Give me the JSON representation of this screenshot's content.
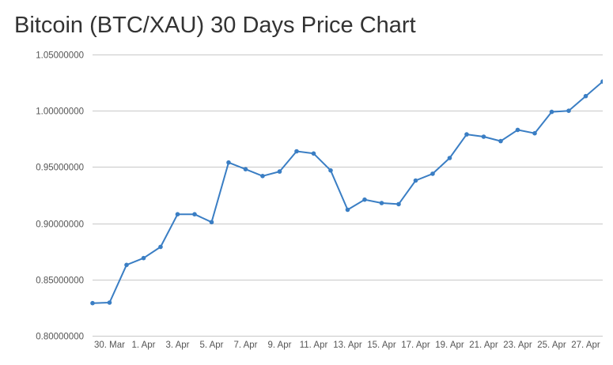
{
  "chart_data": {
    "type": "line",
    "title": "Bitcoin (BTC/XAU) 30 Days Price Chart",
    "xlabel": "",
    "ylabel": "",
    "ylim": [
      0.8,
      1.05
    ],
    "y_ticks": [
      "0.80000000",
      "0.85000000",
      "0.90000000",
      "0.95000000",
      "1.00000000",
      "1.05000000"
    ],
    "y_tick_values": [
      0.8,
      0.85,
      0.9,
      0.95,
      1.0,
      1.05
    ],
    "x_tick_labels": [
      "30. Mar",
      "1. Apr",
      "3. Apr",
      "5. Apr",
      "7. Apr",
      "9. Apr",
      "11. Apr",
      "13. Apr",
      "15. Apr",
      "17. Apr",
      "19. Apr",
      "21. Apr",
      "23. Apr",
      "25. Apr",
      "27. Apr"
    ],
    "x_tick_days": [
      1,
      3,
      5,
      7,
      9,
      11,
      13,
      15,
      17,
      19,
      21,
      23,
      25,
      27,
      29
    ],
    "grid": "horizontal",
    "legend": "none",
    "color": "#3a7ec4",
    "x": [
      "29. Mar",
      "30. Mar",
      "31. Mar",
      "1. Apr",
      "2. Apr",
      "3. Apr",
      "4. Apr",
      "5. Apr",
      "6. Apr",
      "7. Apr",
      "8. Apr",
      "9. Apr",
      "10. Apr",
      "11. Apr",
      "12. Apr",
      "13. Apr",
      "14. Apr",
      "15. Apr",
      "16. Apr",
      "17. Apr",
      "18. Apr",
      "19. Apr",
      "20. Apr",
      "21. Apr",
      "22. Apr",
      "23. Apr",
      "24. Apr",
      "25. Apr",
      "26. Apr",
      "27. Apr",
      "28. Apr"
    ],
    "series": [
      {
        "values": [
          0.829,
          0.8295,
          0.863,
          0.869,
          0.879,
          0.908,
          0.908,
          0.901,
          0.954,
          0.948,
          0.942,
          0.946,
          0.964,
          0.962,
          0.947,
          0.912,
          0.921,
          0.918,
          0.917,
          0.938,
          0.944,
          0.958,
          0.979,
          0.977,
          0.973,
          0.983,
          0.98,
          0.999,
          1.0,
          1.013,
          1.026
        ]
      }
    ]
  }
}
